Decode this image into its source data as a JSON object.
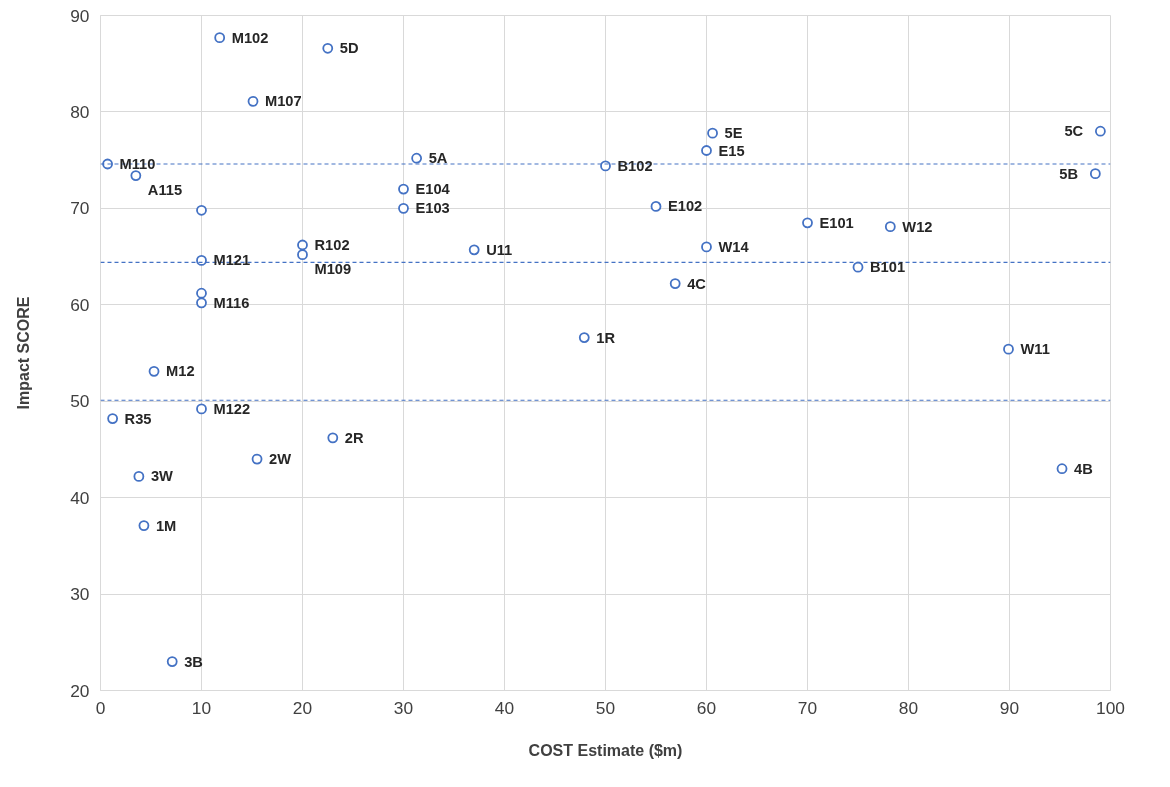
{
  "chart_data": {
    "type": "scatter",
    "xlabel": "COST Estimate ($m)",
    "ylabel": "Impact SCORE",
    "x": [
      11.8,
      22.5,
      15.1,
      0.7,
      3.5,
      10.0,
      31.3,
      30.0,
      30.0,
      20.0,
      20.0,
      10.0,
      10.0,
      10.0,
      5.3,
      10.0,
      1.2,
      23.0,
      15.5,
      3.8,
      4.3,
      7.1,
      60.6,
      60.0,
      50.0,
      55.0,
      70.0,
      37.0,
      60.0,
      56.9,
      47.9,
      99.0,
      98.5,
      78.2,
      75.0,
      89.9,
      95.2
    ],
    "values": [
      87.7,
      86.6,
      81.1,
      74.6,
      73.4,
      69.8,
      75.2,
      72.0,
      70.0,
      66.2,
      65.2,
      64.6,
      61.2,
      60.2,
      53.1,
      49.2,
      48.2,
      46.2,
      44.0,
      42.2,
      37.1,
      23.0,
      77.8,
      76.0,
      74.4,
      70.2,
      68.5,
      65.7,
      66.0,
      62.2,
      56.6,
      78.0,
      73.6,
      68.1,
      63.9,
      55.4,
      43.0
    ],
    "annotations": [
      {
        "text": "M102",
        "x": 11.8,
        "y": 87.7
      },
      {
        "text": "5D",
        "x": 22.5,
        "y": 86.6
      },
      {
        "text": "M107",
        "x": 15.1,
        "y": 81.1
      },
      {
        "text": "M110",
        "x": 0.7,
        "y": 74.6
      },
      {
        "text": "A115",
        "x": 3.5,
        "y": 73.4
      },
      {
        "text": "5A",
        "x": 31.3,
        "y": 75.2
      },
      {
        "text": "E104",
        "x": 30.0,
        "y": 72.0
      },
      {
        "text": "E103",
        "x": 30.0,
        "y": 70.0
      },
      {
        "text": "R102",
        "x": 20.0,
        "y": 66.2
      },
      {
        "text": "M109",
        "x": 20.0,
        "y": 65.2
      },
      {
        "text": "M121",
        "x": 10.0,
        "y": 64.6
      },
      {
        "text": "M116",
        "x": 10.0,
        "y": 60.2
      },
      {
        "text": "M12",
        "x": 5.3,
        "y": 53.1
      },
      {
        "text": "M122",
        "x": 10.0,
        "y": 49.2
      },
      {
        "text": "R35",
        "x": 1.2,
        "y": 48.2
      },
      {
        "text": "2R",
        "x": 23.0,
        "y": 46.2
      },
      {
        "text": "2W",
        "x": 15.5,
        "y": 44.0
      },
      {
        "text": "3W",
        "x": 3.8,
        "y": 42.2
      },
      {
        "text": "1M",
        "x": 4.3,
        "y": 37.1
      },
      {
        "text": "3B",
        "x": 7.1,
        "y": 23.0
      },
      {
        "text": "5E",
        "x": 60.6,
        "y": 77.8
      },
      {
        "text": "E15",
        "x": 60.0,
        "y": 76.0
      },
      {
        "text": "B102",
        "x": 50.0,
        "y": 74.4
      },
      {
        "text": "E102",
        "x": 55.0,
        "y": 70.2
      },
      {
        "text": "E101",
        "x": 70.0,
        "y": 68.5
      },
      {
        "text": "U11",
        "x": 37.0,
        "y": 65.7
      },
      {
        "text": "W14",
        "x": 60.0,
        "y": 66.0
      },
      {
        "text": "4C",
        "x": 56.9,
        "y": 62.2
      },
      {
        "text": "1R",
        "x": 47.9,
        "y": 56.6
      },
      {
        "text": "5C",
        "x": 99.0,
        "y": 78.0
      },
      {
        "text": "5B",
        "x": 98.5,
        "y": 73.6
      },
      {
        "text": "W12",
        "x": 78.2,
        "y": 68.1
      },
      {
        "text": "B101",
        "x": 75.0,
        "y": 63.9
      },
      {
        "text": "W11",
        "x": 89.9,
        "y": 55.4
      },
      {
        "text": "4B",
        "x": 95.2,
        "y": 43.0
      }
    ],
    "color": "#4472c4",
    "marker": "circle",
    "xlim": [
      0,
      100
    ],
    "xticks": [
      0,
      10,
      20,
      30,
      40,
      50,
      60,
      70,
      80,
      90,
      100
    ],
    "ylim": [
      20,
      90
    ],
    "yticks": [
      20,
      30,
      40,
      50,
      60,
      70,
      80,
      90
    ],
    "grid": true,
    "ref_lines": [
      {
        "axis": "y",
        "value": 74.6,
        "color": "#4472c4",
        "line_style": "dashed"
      },
      {
        "axis": "y",
        "value": 64.4,
        "color": "#4472c4",
        "line_style": "dashed"
      },
      {
        "axis": "y",
        "value": 50.1,
        "color": "#4472c4",
        "line_style": "dashed"
      }
    ]
  }
}
